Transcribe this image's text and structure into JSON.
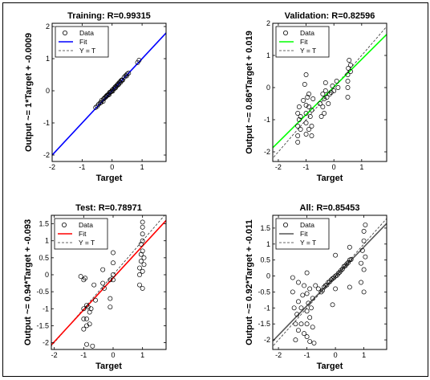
{
  "chart_data": [
    {
      "type": "scatter",
      "title": "Training: R=0.99315",
      "xlabel": "Target",
      "ylabel": "Output ~= 1*Target + -0.0009",
      "xlim": [
        -2,
        1.8
      ],
      "ylim": [
        -2.2,
        2.1
      ],
      "xticks": [
        -2,
        -1,
        0,
        1
      ],
      "yticks": [
        -2,
        -1,
        0,
        1,
        2
      ],
      "xtick_labels": [
        "-2",
        "-1",
        "0",
        "1"
      ],
      "ytick_labels": [
        "-2",
        "-1",
        "0",
        "1",
        "2"
      ],
      "fit": {
        "slope": 1.0,
        "intercept": -0.0009,
        "color": "#0000ff"
      },
      "identity_line": true,
      "legend": [
        "Data",
        "Fit",
        "Y = T"
      ],
      "legend_position": "top-left",
      "points": [
        [
          -0.55,
          -0.52
        ],
        [
          -0.5,
          -0.48
        ],
        [
          -0.45,
          -0.42
        ],
        [
          -0.4,
          -0.38
        ],
        [
          -0.37,
          -0.36
        ],
        [
          -0.35,
          -0.3
        ],
        [
          -0.3,
          -0.33
        ],
        [
          -0.28,
          -0.25
        ],
        [
          -0.25,
          -0.22
        ],
        [
          -0.22,
          -0.2
        ],
        [
          -0.2,
          -0.18
        ],
        [
          -0.18,
          -0.15
        ],
        [
          -0.15,
          -0.14
        ],
        [
          -0.12,
          -0.1
        ],
        [
          -0.1,
          -0.12
        ],
        [
          -0.08,
          -0.05
        ],
        [
          -0.05,
          -0.04
        ],
        [
          -0.02,
          -0.02
        ],
        [
          0.0,
          0.02
        ],
        [
          0.02,
          -0.01
        ],
        [
          0.05,
          0.06
        ],
        [
          0.08,
          0.07
        ],
        [
          0.1,
          0.12
        ],
        [
          0.12,
          0.1
        ],
        [
          0.15,
          0.16
        ],
        [
          0.18,
          0.17
        ],
        [
          0.2,
          0.22
        ],
        [
          0.22,
          0.2
        ],
        [
          0.25,
          0.27
        ],
        [
          0.28,
          0.26
        ],
        [
          0.3,
          0.32
        ],
        [
          0.33,
          0.34
        ],
        [
          0.35,
          0.33
        ],
        [
          0.4,
          0.42
        ],
        [
          0.45,
          0.47
        ],
        [
          0.48,
          0.46
        ],
        [
          0.5,
          0.52
        ],
        [
          0.55,
          0.55
        ],
        [
          0.85,
          0.88
        ],
        [
          0.9,
          0.95
        ]
      ]
    },
    {
      "type": "scatter",
      "title": "Validation: R=0.82596",
      "xlabel": "Target",
      "ylabel": "Output ~= 0.86*Target + 0.019",
      "xlim": [
        -2.2,
        1.9
      ],
      "ylim": [
        -2.3,
        2.0
      ],
      "xticks": [
        -2,
        -1,
        0,
        1
      ],
      "yticks": [
        -2,
        -1,
        0,
        1,
        2
      ],
      "xtick_labels": [
        "-2",
        "-1",
        "0",
        "1"
      ],
      "ytick_labels": [
        "-2",
        "-1",
        "0",
        "1",
        "2"
      ],
      "fit": {
        "slope": 0.86,
        "intercept": 0.019,
        "color": "#00ff00"
      },
      "identity_line": true,
      "legend": [
        "Data",
        "Fit",
        "Y = T"
      ],
      "legend_position": "top-left",
      "points": [
        [
          -1.3,
          -1.5
        ],
        [
          -1.3,
          -1.2
        ],
        [
          -1.3,
          -0.8
        ],
        [
          -1.3,
          -1.7
        ],
        [
          -1.25,
          -0.6
        ],
        [
          -1.25,
          -1.0
        ],
        [
          -1.2,
          -1.3
        ],
        [
          -1.2,
          -0.9
        ],
        [
          -1.1,
          -0.4
        ],
        [
          -1.05,
          0.1
        ],
        [
          -1.0,
          0.4
        ],
        [
          -1.0,
          -0.55
        ],
        [
          -1.0,
          -0.8
        ],
        [
          -1.0,
          -1.1
        ],
        [
          -1.0,
          -1.45
        ],
        [
          -0.95,
          -0.3
        ],
        [
          -0.9,
          -0.6
        ],
        [
          -0.9,
          -0.2
        ],
        [
          -0.9,
          -1.3
        ],
        [
          -0.85,
          -0.9
        ],
        [
          -0.8,
          -0.7
        ],
        [
          -0.8,
          -1.2
        ],
        [
          -0.8,
          -1.5
        ],
        [
          -0.75,
          -0.35
        ],
        [
          -0.5,
          -0.5
        ],
        [
          -0.45,
          -0.9
        ],
        [
          -0.4,
          -0.2
        ],
        [
          -0.4,
          -0.6
        ],
        [
          -0.35,
          -0.8
        ],
        [
          -0.35,
          -0.35
        ],
        [
          -0.3,
          0.15
        ],
        [
          -0.3,
          -0.1
        ],
        [
          -0.25,
          -0.3
        ],
        [
          -0.2,
          -0.5
        ],
        [
          -0.15,
          -0.2
        ],
        [
          -0.1,
          -0.15
        ],
        [
          -0.05,
          0.05
        ],
        [
          0.0,
          -0.1
        ],
        [
          0.1,
          0.2
        ],
        [
          0.15,
          0.0
        ],
        [
          0.5,
          -0.3
        ],
        [
          0.5,
          0.0
        ],
        [
          0.5,
          0.2
        ],
        [
          0.5,
          0.4
        ],
        [
          0.52,
          0.6
        ],
        [
          0.55,
          0.85
        ],
        [
          0.6,
          0.5
        ],
        [
          0.6,
          0.7
        ]
      ]
    },
    {
      "type": "scatter",
      "title": "Test: R=0.78971",
      "xlabel": "Target",
      "ylabel": "Output ~= 0.94*Target + -0.093",
      "xlim": [
        -2.1,
        1.8
      ],
      "ylim": [
        -2.2,
        1.75
      ],
      "xticks": [
        -2,
        -1,
        0,
        1
      ],
      "yticks": [
        -2,
        -1.5,
        -1,
        -0.5,
        0,
        0.5,
        1,
        1.5
      ],
      "xtick_labels": [
        "-2",
        "-1",
        "0",
        "1"
      ],
      "ytick_labels": [
        "-2",
        "-1.5",
        "-1",
        "-0.5",
        "0",
        "0.5",
        "1",
        "1.5"
      ],
      "fit": {
        "slope": 0.94,
        "intercept": -0.093,
        "color": "#ff0000"
      },
      "identity_line": true,
      "legend": [
        "Data",
        "Fit",
        "Y = T"
      ],
      "legend_position": "top-left",
      "points": [
        [
          -1.1,
          -0.05
        ],
        [
          -1.0,
          -0.15
        ],
        [
          -1.0,
          -1.0
        ],
        [
          -1.0,
          -1.3
        ],
        [
          -1.0,
          -1.6
        ],
        [
          -0.95,
          -0.1
        ],
        [
          -0.9,
          -0.9
        ],
        [
          -0.9,
          -1.3
        ],
        [
          -0.9,
          -1.5
        ],
        [
          -0.9,
          -2.05
        ],
        [
          -0.85,
          -0.95
        ],
        [
          -0.8,
          -1.1
        ],
        [
          -0.8,
          -1.45
        ],
        [
          -0.75,
          -1.0
        ],
        [
          -0.7,
          -2.1
        ],
        [
          -0.65,
          -0.3
        ],
        [
          -0.6,
          -0.75
        ],
        [
          -0.35,
          -0.25
        ],
        [
          -0.35,
          0.15
        ],
        [
          -0.3,
          -0.4
        ],
        [
          -0.1,
          -0.15
        ],
        [
          -0.1,
          -0.7
        ],
        [
          -0.1,
          -0.95
        ],
        [
          0.0,
          0.35
        ],
        [
          0.0,
          0.65
        ],
        [
          0.0,
          0.0
        ],
        [
          0.0,
          -0.15
        ],
        [
          0.9,
          0.0
        ],
        [
          0.9,
          -0.3
        ],
        [
          0.9,
          0.2
        ],
        [
          0.95,
          0.4
        ],
        [
          0.95,
          0.6
        ],
        [
          0.95,
          0.9
        ],
        [
          1.0,
          1.2
        ],
        [
          1.0,
          1.4
        ],
        [
          1.0,
          1.55
        ],
        [
          1.0,
          0.1
        ],
        [
          1.0,
          -0.4
        ],
        [
          1.0,
          0.7
        ],
        [
          1.0,
          1.0
        ],
        [
          1.05,
          0.3
        ],
        [
          1.05,
          0.5
        ]
      ]
    },
    {
      "type": "scatter",
      "title": "All: R=0.85453",
      "xlabel": "Target",
      "ylabel": "Output ~= 0.92*Target + -0.011",
      "xlim": [
        -2.2,
        1.8
      ],
      "ylim": [
        -2.3,
        1.9
      ],
      "xticks": [
        -2,
        -1,
        0,
        1
      ],
      "yticks": [
        -2,
        -1.5,
        -1,
        -0.5,
        0,
        0.5,
        1,
        1.5
      ],
      "xtick_labels": [
        "-2",
        "-1",
        "0",
        "1"
      ],
      "ytick_labels": [
        "-2",
        "-1.5",
        "-1",
        "-0.5",
        "0",
        "0.5",
        "1",
        "1.5"
      ],
      "fit": {
        "slope": 0.92,
        "intercept": -0.011,
        "color": "#555555"
      },
      "identity_line": true,
      "legend": [
        "Data",
        "Fit",
        "Y = T"
      ],
      "legend_position": "top-left",
      "points": [
        [
          -1.5,
          -0.05
        ],
        [
          -1.5,
          -0.5
        ],
        [
          -1.45,
          -1.0
        ],
        [
          -1.4,
          -1.5
        ],
        [
          -1.4,
          -2.0
        ],
        [
          -1.35,
          -1.2
        ],
        [
          -1.3,
          -1.7
        ],
        [
          -1.3,
          -0.8
        ],
        [
          -1.3,
          -0.2
        ],
        [
          -1.2,
          -1.0
        ],
        [
          -1.2,
          -1.5
        ],
        [
          -1.15,
          -0.6
        ],
        [
          -1.1,
          -1.8
        ],
        [
          -1.1,
          -0.3
        ],
        [
          -1.0,
          0.1
        ],
        [
          -1.0,
          -0.55
        ],
        [
          -1.0,
          -1.1
        ],
        [
          -1.0,
          -1.5
        ],
        [
          -1.0,
          -1.9
        ],
        [
          -0.95,
          -0.85
        ],
        [
          -0.9,
          -1.3
        ],
        [
          -0.9,
          -2.05
        ],
        [
          -0.9,
          -0.4
        ],
        [
          -0.85,
          -1.0
        ],
        [
          -0.8,
          -1.6
        ],
        [
          -0.8,
          -0.7
        ],
        [
          -0.75,
          -2.1
        ],
        [
          -0.7,
          -0.3
        ],
        [
          -0.6,
          -0.4
        ],
        [
          -0.5,
          -0.5
        ],
        [
          -0.45,
          -0.45
        ],
        [
          -0.4,
          -0.35
        ],
        [
          -0.35,
          -0.3
        ],
        [
          -0.3,
          -0.28
        ],
        [
          -0.25,
          -0.2
        ],
        [
          -0.2,
          -0.18
        ],
        [
          -0.15,
          -0.12
        ],
        [
          -0.1,
          -0.08
        ],
        [
          -0.05,
          -0.05
        ],
        [
          0.0,
          0.0
        ],
        [
          0.05,
          0.02
        ],
        [
          0.1,
          0.08
        ],
        [
          0.15,
          0.12
        ],
        [
          0.2,
          0.18
        ],
        [
          0.25,
          0.22
        ],
        [
          0.3,
          0.3
        ],
        [
          0.35,
          0.32
        ],
        [
          0.4,
          0.38
        ],
        [
          0.45,
          0.42
        ],
        [
          0.5,
          0.5
        ],
        [
          0.55,
          0.52
        ],
        [
          0.0,
          0.65
        ],
        [
          0.0,
          -0.4
        ],
        [
          -0.1,
          -0.9
        ],
        [
          0.5,
          0.9
        ],
        [
          0.5,
          -0.35
        ],
        [
          0.9,
          0.4
        ],
        [
          0.9,
          -0.2
        ],
        [
          0.95,
          0.8
        ],
        [
          1.0,
          1.1
        ],
        [
          1.0,
          1.4
        ],
        [
          1.0,
          -0.5
        ],
        [
          1.0,
          0.2
        ],
        [
          1.05,
          0.6
        ],
        [
          1.05,
          1.6
        ]
      ]
    }
  ]
}
